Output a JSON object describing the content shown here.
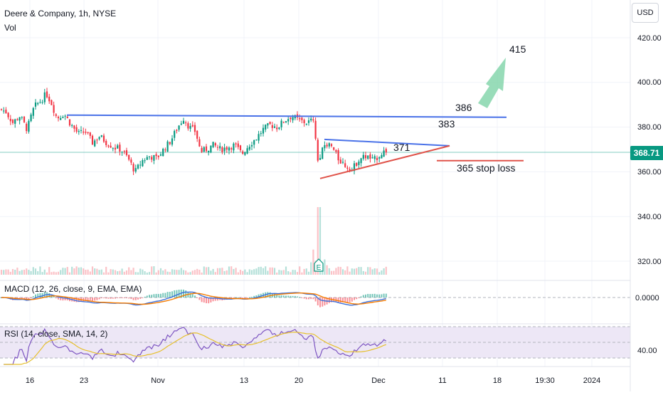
{
  "header": {
    "symbol_title": "Deere & Company, 1h, NYSE",
    "vol_label": "Vol",
    "currency_button": "USD",
    "last_price": "368.71"
  },
  "indicators": {
    "macd_label": "MACD (12, 26, close, 9, EMA, EMA)",
    "rsi_label": "RSI (14, close, SMA, 14, 2)",
    "macd_axis_label": "0.0000",
    "rsi_axis_label": "40.00"
  },
  "colors": {
    "up": "#089981",
    "down": "#f23645",
    "blue_line": "#4a72e8",
    "red_line": "#e0534a",
    "arrow": "#7ed3a8",
    "macd": "#3d6fd8",
    "signal": "#f57c00",
    "rsi": "#7e57c2",
    "rsi_sma": "#e6c02e",
    "rsi_band": "#ede7f6"
  },
  "annotations": {
    "target_label": "415",
    "resistance_label": "386",
    "level_label": "383",
    "triangle_top_label": "371",
    "stop_label": "365 stop loss",
    "earnings_marker": "E"
  },
  "chart_data": {
    "type": "candlestick",
    "title": "Deere & Company, 1h, NYSE",
    "price_axis": {
      "ticks": [
        "420.00",
        "400.00",
        "380.00",
        "360.00",
        "340.00",
        "320.00"
      ],
      "min": 315,
      "max": 425
    },
    "time_axis": {
      "ticks": [
        "16",
        "23",
        "Nov",
        "13",
        "20",
        "Dec",
        "11",
        "18",
        "19:30",
        "2024"
      ]
    },
    "last_price": 368.71,
    "price_path": [
      [
        0,
        388
      ],
      [
        8,
        387
      ],
      [
        18,
        382
      ],
      [
        28,
        385
      ],
      [
        38,
        379
      ],
      [
        48,
        389
      ],
      [
        58,
        392
      ],
      [
        65,
        395
      ],
      [
        72,
        391
      ],
      [
        80,
        384
      ],
      [
        90,
        386
      ],
      [
        100,
        381
      ],
      [
        110,
        377
      ],
      [
        120,
        378
      ],
      [
        130,
        373
      ],
      [
        140,
        376
      ],
      [
        150,
        373
      ],
      [
        160,
        371
      ],
      [
        170,
        370
      ],
      [
        180,
        366
      ],
      [
        190,
        360
      ],
      [
        200,
        365
      ],
      [
        210,
        367
      ],
      [
        220,
        366
      ],
      [
        230,
        370
      ],
      [
        240,
        374
      ],
      [
        250,
        380
      ],
      [
        258,
        384
      ],
      [
        266,
        380
      ],
      [
        275,
        378
      ],
      [
        282,
        369
      ],
      [
        290,
        370
      ],
      [
        300,
        372
      ],
      [
        310,
        370
      ],
      [
        320,
        371
      ],
      [
        330,
        372
      ],
      [
        340,
        368
      ],
      [
        350,
        372
      ],
      [
        360,
        375
      ],
      [
        370,
        379
      ],
      [
        380,
        381
      ],
      [
        390,
        380
      ],
      [
        400,
        383
      ],
      [
        410,
        385
      ],
      [
        420,
        383
      ],
      [
        430,
        382
      ],
      [
        440,
        383
      ],
      [
        448,
        362
      ],
      [
        455,
        372
      ],
      [
        465,
        372
      ],
      [
        475,
        366
      ],
      [
        485,
        363
      ],
      [
        495,
        361
      ],
      [
        505,
        366
      ],
      [
        515,
        367
      ],
      [
        525,
        365
      ],
      [
        535,
        368
      ],
      [
        545,
        370
      ]
    ],
    "volume_spike_x": 448,
    "drawings": {
      "resistance": {
        "value": 386
      },
      "target": {
        "value": 415
      },
      "level_383": {
        "value": 383
      },
      "triangle_upper": {
        "value": 371
      },
      "stop_loss": {
        "value": 365
      }
    },
    "macd_axis_value": 0.0,
    "rsi_axis_value": 40.0
  }
}
